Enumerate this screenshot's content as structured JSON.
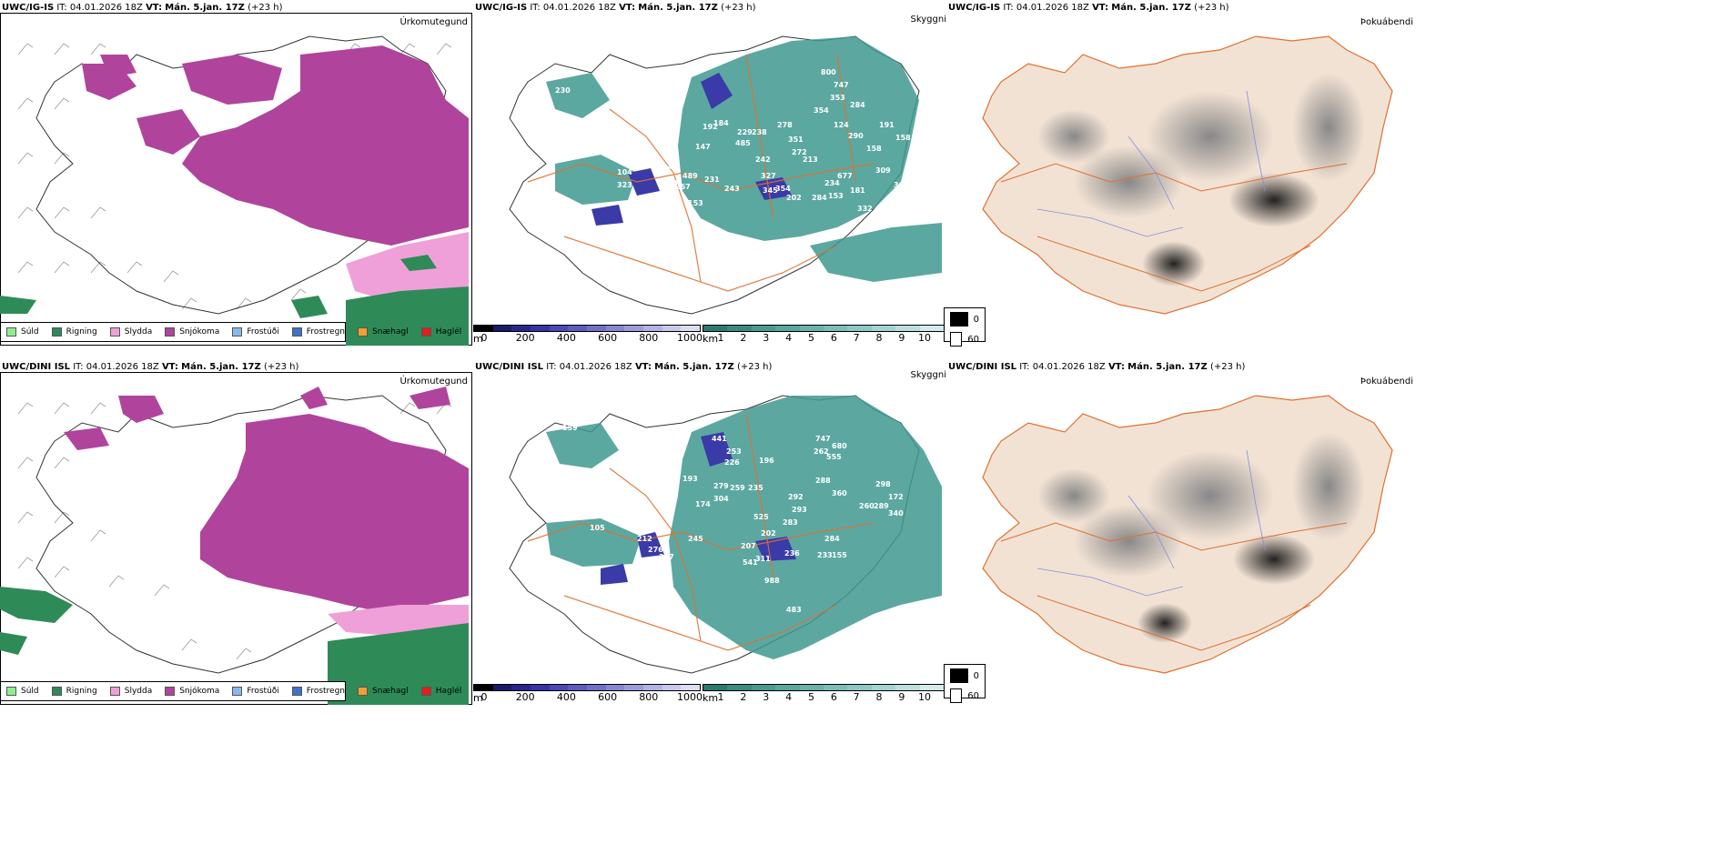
{
  "rows": [
    {
      "model": "UWC/IG-IS",
      "it_label": "IT:",
      "it_value": "04.01.2026 18Z",
      "vt_label": "VT:",
      "vt_value": "Mán. 5.jan. 17Z",
      "lead": "(+23 h)"
    },
    {
      "model": "UWC/DINI ISL",
      "it_label": "IT:",
      "it_value": "04.01.2026 18Z",
      "vt_label": "VT:",
      "vt_value": "Mán. 5.jan. 17Z",
      "lead": "(+23 h)"
    }
  ],
  "panel_titles": {
    "precip": "Úrkomutegund",
    "cloud": "Skyggni",
    "fog": "Þokuábendi"
  },
  "precip_legend": [
    {
      "label": "Súld",
      "color": "#90ee90"
    },
    {
      "label": "Rigning",
      "color": "#2e8b57"
    },
    {
      "label": "Slydda",
      "color": "#f0a0d8"
    },
    {
      "label": "Snjókoma",
      "color": "#b0449c"
    },
    {
      "label": "Frostúði",
      "color": "#87b8f0"
    },
    {
      "label": "Frostregn",
      "color": "#3f72c6"
    },
    {
      "label": "Snæhagl",
      "color": "#f0a030"
    },
    {
      "label": "Haglél",
      "color": "#e02020"
    }
  ],
  "colors": {
    "snow": "#b0449c",
    "sleet": "#f0a0d8",
    "rain": "#2e8b57",
    "vis": "#3f9990",
    "lowcloud": "#3a3aa8",
    "land": "#f2e2d4",
    "road": "#e07030",
    "river": "#8090e0"
  },
  "cloud_base_bar": {
    "unit": "m",
    "ticks": [
      "0",
      "200",
      "400",
      "600",
      "800",
      "1000"
    ]
  },
  "visibility_bar": {
    "unit": "km",
    "ticks": [
      "1",
      "2",
      "3",
      "4",
      "5",
      "6",
      "7",
      "8",
      "9",
      "10"
    ]
  },
  "vis_key": [
    {
      "label": "0"
    },
    {
      "label": "60"
    }
  ],
  "cloud_labels_top": [
    "230",
    "800",
    "747",
    "353",
    "354",
    "284",
    "191",
    "158",
    "158",
    "309",
    "302",
    "332",
    "124",
    "290",
    "278",
    "351",
    "272",
    "213",
    "242",
    "327",
    "243",
    "345",
    "354",
    "202",
    "284",
    "153",
    "181",
    "677",
    "234",
    "244",
    "489",
    "231",
    "149",
    "104",
    "323",
    "122",
    "153",
    "267",
    "192",
    "229",
    "238",
    "184",
    "147",
    "485",
    "224"
  ],
  "cloud_labels_bottom": [
    "747",
    "680",
    "555",
    "262",
    "441",
    "253",
    "226",
    "196",
    "288",
    "298",
    "172",
    "340",
    "260",
    "289",
    "360",
    "292",
    "293",
    "283",
    "525",
    "245",
    "247",
    "212",
    "276",
    "105",
    "337",
    "202",
    "207",
    "311",
    "236",
    "233",
    "155",
    "284",
    "541",
    "988",
    "483",
    "279",
    "304",
    "259",
    "235",
    "193",
    "174",
    "159"
  ]
}
